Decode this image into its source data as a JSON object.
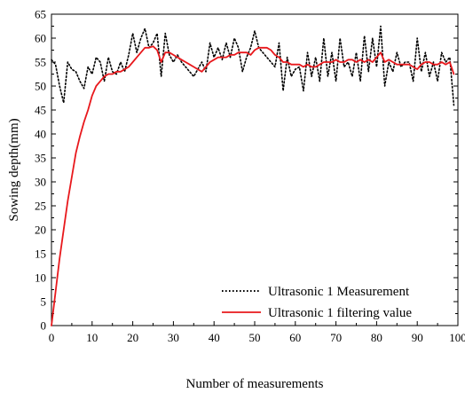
{
  "chart_data": {
    "type": "line",
    "xlabel": "Number of measurements",
    "ylabel": "Sowing depth(mm)",
    "xlim": [
      0,
      100
    ],
    "ylim": [
      0,
      65
    ],
    "x_ticks": [
      0,
      10,
      20,
      30,
      40,
      50,
      60,
      70,
      80,
      90,
      100
    ],
    "y_ticks": [
      0,
      5,
      10,
      15,
      20,
      25,
      30,
      35,
      40,
      45,
      50,
      55,
      60,
      65
    ],
    "x_tick_labels": [
      "0",
      "10",
      "20",
      "30",
      "40",
      "50",
      "60",
      "70",
      "80",
      "90",
      "100"
    ],
    "y_tick_labels": [
      "0",
      "5",
      "10",
      "15",
      "20",
      "25",
      "30",
      "35",
      "40",
      "45",
      "50",
      "55",
      "60",
      "65"
    ],
    "grid": false,
    "legend_position": "bottom-right",
    "series": [
      {
        "name": "Ultrasonic 1 Measurement",
        "color": "#000000",
        "style": "dotted",
        "x": [
          0,
          1,
          2,
          3,
          4,
          5,
          6,
          7,
          8,
          9,
          10,
          11,
          12,
          13,
          14,
          15,
          16,
          17,
          18,
          19,
          20,
          21,
          22,
          23,
          24,
          25,
          26,
          27,
          28,
          29,
          30,
          31,
          32,
          33,
          34,
          35,
          36,
          37,
          38,
          39,
          40,
          41,
          42,
          43,
          44,
          45,
          46,
          47,
          48,
          49,
          50,
          51,
          52,
          53,
          54,
          55,
          56,
          57,
          58,
          59,
          60,
          61,
          62,
          63,
          64,
          65,
          66,
          67,
          68,
          69,
          70,
          71,
          72,
          73,
          74,
          75,
          76,
          77,
          78,
          79,
          80,
          81,
          82,
          83,
          84,
          85,
          86,
          87,
          88,
          89,
          90,
          91,
          92,
          93,
          94,
          95,
          96,
          97,
          98,
          99
        ],
        "y": [
          55.5,
          54.5,
          50,
          46.5,
          55,
          53.5,
          53,
          51,
          49.5,
          54,
          52.5,
          56,
          55,
          51,
          56,
          53,
          52.5,
          55,
          53,
          56.5,
          61,
          57,
          60,
          62,
          58,
          59,
          61,
          52,
          61,
          56.5,
          55,
          56.5,
          55,
          54,
          53,
          52,
          53.5,
          55,
          53,
          59,
          56,
          58,
          55.5,
          59,
          56,
          60,
          58,
          53,
          56,
          58,
          61.5,
          58,
          57,
          56,
          55,
          54,
          59,
          49,
          56,
          52,
          53.5,
          54,
          49,
          57,
          52,
          56,
          51,
          60,
          52,
          57,
          51,
          60,
          54,
          55,
          52,
          57,
          51,
          60.5,
          53,
          60,
          54,
          62.5,
          50,
          55,
          53,
          57,
          54,
          55,
          55,
          51,
          60,
          53,
          57,
          52,
          55,
          51,
          57,
          55,
          56,
          46
        ]
      },
      {
        "name": "Ultrasonic 1 filtering value",
        "color": "#e8181c",
        "style": "solid",
        "x": [
          0,
          1,
          2,
          3,
          4,
          5,
          6,
          7,
          8,
          9,
          10,
          11,
          12,
          13,
          14,
          15,
          16,
          17,
          18,
          19,
          20,
          21,
          22,
          23,
          24,
          25,
          26,
          27,
          28,
          29,
          30,
          31,
          32,
          33,
          34,
          35,
          36,
          37,
          38,
          39,
          40,
          41,
          42,
          43,
          44,
          45,
          46,
          47,
          48,
          49,
          50,
          51,
          52,
          53,
          54,
          55,
          56,
          57,
          58,
          59,
          60,
          61,
          62,
          63,
          64,
          65,
          66,
          67,
          68,
          69,
          70,
          71,
          72,
          73,
          74,
          75,
          76,
          77,
          78,
          79,
          80,
          81,
          82,
          83,
          84,
          85,
          86,
          87,
          88,
          89,
          90,
          91,
          92,
          93,
          94,
          95,
          96,
          97,
          98,
          99
        ],
        "y": [
          0,
          7,
          14,
          20,
          26,
          31,
          36,
          39.5,
          42.5,
          45,
          48,
          50,
          51,
          52,
          52.5,
          52.5,
          53,
          53,
          53.5,
          54,
          55,
          56,
          57,
          58,
          58,
          58.3,
          57.5,
          55,
          57,
          57,
          56.5,
          56,
          55.5,
          55,
          54.5,
          54,
          53.5,
          53,
          54,
          55,
          55.5,
          56,
          56,
          56,
          56.5,
          56.5,
          57,
          57,
          57,
          56.5,
          57.5,
          58,
          58,
          58,
          57.5,
          56.5,
          56,
          55,
          55,
          54.5,
          54.5,
          54.5,
          54,
          54.5,
          54,
          54,
          54.5,
          55,
          55,
          55,
          55.5,
          55,
          55,
          55.5,
          55.5,
          55,
          55.5,
          55,
          55.5,
          55,
          56,
          57,
          55,
          55.5,
          55,
          54.5,
          54.5,
          54.5,
          54.5,
          54,
          53.5,
          54.5,
          55,
          55,
          54.5,
          54.5,
          55,
          54.5,
          55,
          52.5
        ]
      }
    ]
  }
}
